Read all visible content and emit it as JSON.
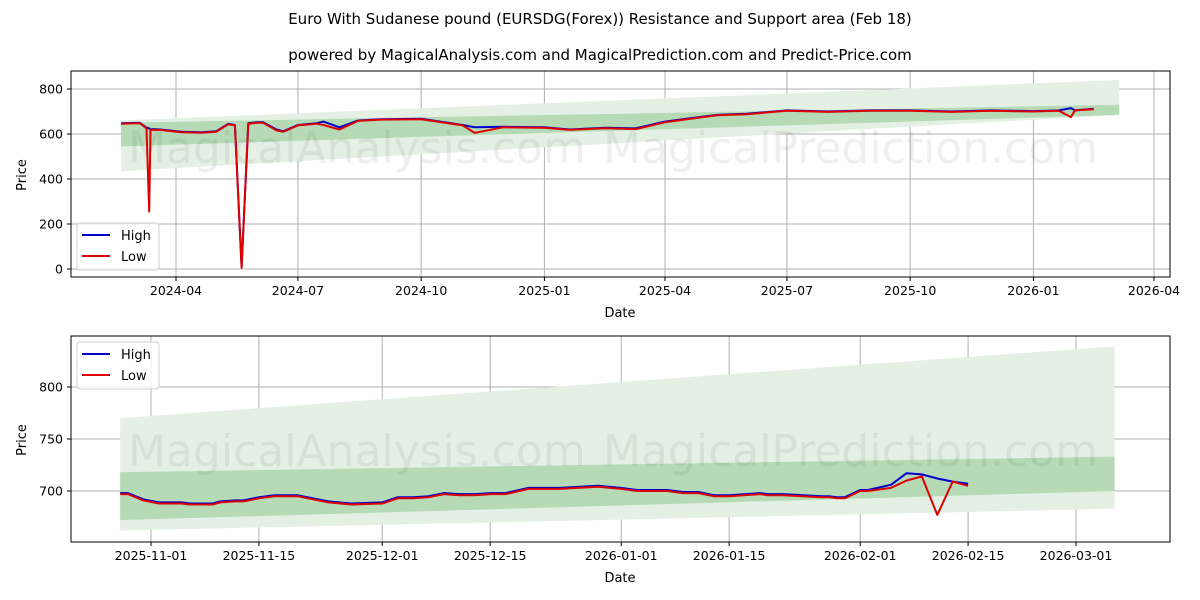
{
  "header": {
    "title": "Euro With Sudanese pound (EURSDG(Forex)) Resistance and Support area (Feb 18)",
    "subtitle": "powered by MagicalAnalysis.com and MagicalPrediction.com and Predict-Price.com"
  },
  "watermarks": [
    "MagicalAnalysis.com",
    "MagicalPrediction.com"
  ],
  "colors": {
    "high": "#0000cc",
    "low": "#dd0000",
    "band_light": "#e3f0e3",
    "band_dark": "#b5dab5",
    "grid": "#b0b0b0"
  },
  "chart_data": [
    {
      "type": "line",
      "title": "Full history",
      "xlabel": "Date",
      "ylabel": "Price",
      "ylim": [
        -50,
        880
      ],
      "grid": true,
      "legend_position": "lower left",
      "legend": [
        "High",
        "Low"
      ],
      "x_ticks": [
        "2024-04",
        "2024-07",
        "2024-10",
        "2025-01",
        "2025-04",
        "2025-07",
        "2025-10",
        "2026-01",
        "2026-04"
      ],
      "y_ticks": [
        "0",
        "200",
        "400",
        "600",
        "800"
      ],
      "x": [
        "2024-02-20",
        "2024-03-05",
        "2024-03-10",
        "2024-03-12",
        "2024-03-13",
        "2024-03-15",
        "2024-03-20",
        "2024-04-05",
        "2024-04-20",
        "2024-05-01",
        "2024-05-10",
        "2024-05-15",
        "2024-05-20",
        "2024-05-25",
        "2024-06-01",
        "2024-06-05",
        "2024-06-15",
        "2024-06-20",
        "2024-07-01",
        "2024-07-15",
        "2024-07-20",
        "2024-08-01",
        "2024-08-15",
        "2024-09-01",
        "2024-10-01",
        "2024-11-01",
        "2024-11-10",
        "2024-12-01",
        "2025-01-01",
        "2025-01-20",
        "2025-02-15",
        "2025-03-10",
        "2025-04-01",
        "2025-04-20",
        "2025-05-10",
        "2025-06-01",
        "2025-07-01",
        "2025-08-01",
        "2025-09-01",
        "2025-10-01",
        "2025-11-01",
        "2025-12-01",
        "2026-01-01",
        "2026-01-20",
        "2026-01-29",
        "2026-02-01",
        "2026-02-15"
      ],
      "series": [
        {
          "name": "High",
          "values": [
            648,
            650,
            628,
            625,
            620,
            622,
            620,
            610,
            608,
            612,
            645,
            640,
            10,
            648,
            652,
            652,
            620,
            612,
            640,
            648,
            655,
            630,
            660,
            666,
            668,
            640,
            630,
            632,
            630,
            620,
            628,
            625,
            655,
            670,
            685,
            690,
            705,
            700,
            705,
            705,
            700,
            705,
            702,
            705,
            715,
            705,
            712
          ]
        },
        {
          "name": "Low",
          "values": [
            646,
            648,
            625,
            255,
            618,
            618,
            618,
            608,
            606,
            610,
            643,
            638,
            5,
            646,
            650,
            650,
            616,
            610,
            638,
            646,
            640,
            620,
            658,
            664,
            666,
            638,
            605,
            630,
            628,
            618,
            626,
            622,
            652,
            668,
            683,
            688,
            703,
            698,
            703,
            703,
            698,
            703,
            700,
            703,
            675,
            705,
            710
          ]
        }
      ],
      "bands": {
        "x_start": "2024-02-20",
        "x_end": "2026-03-06",
        "outer_start": [
          435,
          660
        ],
        "outer_end": [
          685,
          840
        ],
        "inner_start": [
          545,
          650
        ],
        "inner_end": [
          685,
          730
        ]
      }
    },
    {
      "type": "line",
      "title": "Recent zoom",
      "xlabel": "Date",
      "ylabel": "Price",
      "ylim": [
        650,
        845
      ],
      "grid": true,
      "legend_position": "upper left",
      "legend": [
        "High",
        "Low"
      ],
      "x_ticks": [
        "2025-11-01",
        "2025-11-15",
        "2025-12-01",
        "2025-12-15",
        "2026-01-01",
        "2026-01-15",
        "2026-02-01",
        "2026-02-15",
        "2026-03-01"
      ],
      "y_ticks": [
        "700",
        "750",
        "800"
      ],
      "x": [
        "2025-10-28",
        "2025-10-29",
        "2025-10-31",
        "2025-11-02",
        "2025-11-03",
        "2025-11-05",
        "2025-11-06",
        "2025-11-09",
        "2025-11-10",
        "2025-11-12",
        "2025-11-13",
        "2025-11-15",
        "2025-11-17",
        "2025-11-20",
        "2025-11-22",
        "2025-11-24",
        "2025-11-27",
        "2025-12-01",
        "2025-12-03",
        "2025-12-05",
        "2025-12-07",
        "2025-12-09",
        "2025-12-11",
        "2025-12-13",
        "2025-12-15",
        "2025-12-17",
        "2025-12-20",
        "2025-12-22",
        "2025-12-24",
        "2025-12-29",
        "2026-01-01",
        "2026-01-03",
        "2026-01-05",
        "2026-01-07",
        "2026-01-09",
        "2026-01-11",
        "2026-01-13",
        "2026-01-15",
        "2026-01-19",
        "2026-01-20",
        "2026-01-22",
        "2026-01-27",
        "2026-01-28",
        "2026-01-29",
        "2026-01-30",
        "2026-02-01",
        "2026-02-02",
        "2026-02-05",
        "2026-02-07",
        "2026-02-09",
        "2026-02-11",
        "2026-02-13",
        "2026-02-15"
      ],
      "series": [
        {
          "name": "High",
          "values": [
            698,
            698,
            692,
            689,
            689,
            689,
            688,
            688,
            690,
            691,
            691,
            694,
            696,
            696,
            693,
            690,
            688,
            689,
            694,
            694,
            695,
            698,
            697,
            697,
            698,
            698,
            703,
            703,
            703,
            705,
            703,
            701,
            701,
            701,
            699,
            699,
            696,
            696,
            698,
            697,
            697,
            695,
            695,
            694,
            694,
            701,
            701,
            706,
            717,
            716,
            712,
            709,
            707
          ]
        },
        {
          "name": "Low",
          "values": [
            697,
            697,
            691,
            688,
            688,
            688,
            687,
            687,
            689,
            690,
            690,
            693,
            695,
            695,
            692,
            689,
            687,
            688,
            693,
            693,
            694,
            697,
            696,
            696,
            697,
            697,
            702,
            702,
            702,
            704,
            702,
            700,
            700,
            700,
            698,
            698,
            695,
            695,
            697,
            696,
            696,
            694,
            694,
            693,
            693,
            700,
            700,
            703,
            710,
            714,
            677,
            709,
            705
          ]
        }
      ],
      "bands": {
        "x_start": "2025-10-28",
        "x_end": "2026-03-06",
        "outer_start": [
          662,
          770
        ],
        "outer_end": [
          683,
          839
        ],
        "inner_start": [
          672,
          718
        ],
        "inner_end": [
          700,
          733
        ]
      }
    }
  ]
}
